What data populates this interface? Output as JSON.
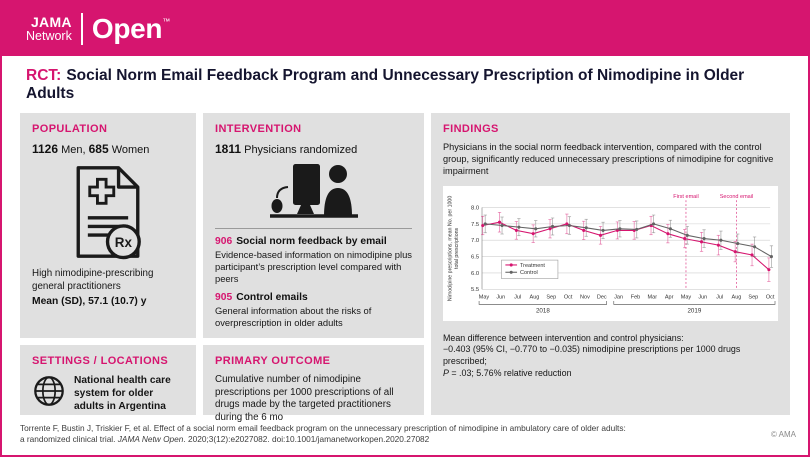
{
  "brand": {
    "jama": "JAMA",
    "network": "Network",
    "open": "Open",
    "tm": "™"
  },
  "title": {
    "tag": "RCT:",
    "text": "Social Norm Email Feedback Program and Unnecessary Prescription of Nimodipine in Older Adults"
  },
  "population": {
    "heading": "POPULATION",
    "men_value": "1126",
    "men_label": " Men, ",
    "women_value": "685",
    "women_label": " Women",
    "icon": "prescription-rx-document-icon",
    "rx_label": "Rx",
    "desc": "High nimodipine-prescribing general practitioners",
    "age": "Mean (SD), 57.1 (10.7) y"
  },
  "settings": {
    "heading": "SETTINGS / LOCATIONS",
    "icon": "globe-icon",
    "text": "National health care system for older adults in Argentina"
  },
  "intervention": {
    "heading": "INTERVENTION",
    "count_value": "1811",
    "count_label": " Physicians randomized",
    "icon": "physician-at-computer-icon",
    "arm1_value": "906",
    "arm1_title": "Social norm feedback by email",
    "arm1_desc": "Evidence-based information on nimodipine plus participant’s prescription level compared with peers",
    "arm2_value": "905",
    "arm2_title": "Control emails",
    "arm2_desc": "General information about the risks of overprescription in older adults"
  },
  "primary_outcome": {
    "heading": "PRIMARY OUTCOME",
    "text": "Cumulative number of nimodipine prescriptions per 1000 prescriptions of all drugs made by the targeted practitioners during the 6 mo"
  },
  "findings": {
    "heading": "FINDINGS",
    "summary": "Physicians in the social norm feedback intervention, compared with the control group, significantly reduced unnecessary prescriptions of nimodipine for cognitive impairment",
    "result_intro": "Mean difference between intervention and control physicians:",
    "result_value": "−0.403 (95% CI, −0.770 to −0.035) nimodipine prescriptions per 1000 drugs prescribed;",
    "result_p": "P",
    "result_p_rest": " = .03; 5.76% relative reduction"
  },
  "footer": {
    "line1": "Torrente F, Bustin J, Triskier F, et al. Effect of a social norm email feedback program on the unnecessary prescription of nimodipine in ambulatory care of older adults:",
    "line2_pre": "a randomized clinical trial. ",
    "journal": "JAMA Netw Open",
    "line2_post": ". 2020;3(12):e2027082. doi:10.1001/jamanetworkopen.2020.27082",
    "copyright": "© AMA"
  },
  "colors": {
    "accent_pink": "#d6156f",
    "panel_gray": "#e0e0e0",
    "title_navy": "#15152f",
    "control_gray": "#636363",
    "chart_grid": "#cfcfcf"
  },
  "chart_data": {
    "type": "line",
    "title": "",
    "xlabel": "",
    "ylabel": "Nimodipine prescriptions, mean No. per 1000 total prescriptions",
    "ylabel_lines": [
      "Nimodipine prescriptions, mean No. per 1000",
      "total prescriptions"
    ],
    "x": [
      "May",
      "Jun",
      "Jul",
      "Aug",
      "Sep",
      "Oct",
      "Nov",
      "Dec",
      "Jan",
      "Feb",
      "Mar",
      "Apr",
      "May",
      "Jun",
      "Jul",
      "Aug",
      "Sep",
      "Oct"
    ],
    "year_groups": [
      {
        "label": "2018",
        "from": 0,
        "to": 7
      },
      {
        "label": "2019",
        "from": 8,
        "to": 17
      }
    ],
    "ylim": [
      5.5,
      8.0
    ],
    "yticks": [
      5.5,
      6.0,
      6.5,
      7.0,
      7.5,
      8.0
    ],
    "grid": true,
    "legend_position": "lower-left",
    "annotation_color": "#d6156f",
    "annotations": [
      {
        "label": "First email",
        "index": 12
      },
      {
        "label": "Second email",
        "index": 15
      }
    ],
    "series": [
      {
        "name": "Treatment",
        "color": "#d6156f",
        "values": [
          7.45,
          7.55,
          7.3,
          7.2,
          7.35,
          7.5,
          7.3,
          7.15,
          7.3,
          7.3,
          7.45,
          7.2,
          7.05,
          6.95,
          6.85,
          6.65,
          6.55,
          6.1
        ],
        "err": [
          0.28,
          0.3,
          0.27,
          0.27,
          0.28,
          0.3,
          0.28,
          0.27,
          0.26,
          0.27,
          0.28,
          0.28,
          0.28,
          0.29,
          0.3,
          0.31,
          0.33,
          0.36
        ]
      },
      {
        "name": "Control",
        "color": "#636363",
        "values": [
          7.5,
          7.45,
          7.4,
          7.35,
          7.42,
          7.45,
          7.38,
          7.3,
          7.35,
          7.33,
          7.5,
          7.35,
          7.15,
          7.05,
          7.0,
          6.9,
          6.8,
          6.5
        ],
        "err": [
          0.27,
          0.26,
          0.26,
          0.25,
          0.26,
          0.27,
          0.26,
          0.25,
          0.25,
          0.26,
          0.27,
          0.26,
          0.27,
          0.27,
          0.28,
          0.29,
          0.3,
          0.33
        ]
      }
    ]
  }
}
